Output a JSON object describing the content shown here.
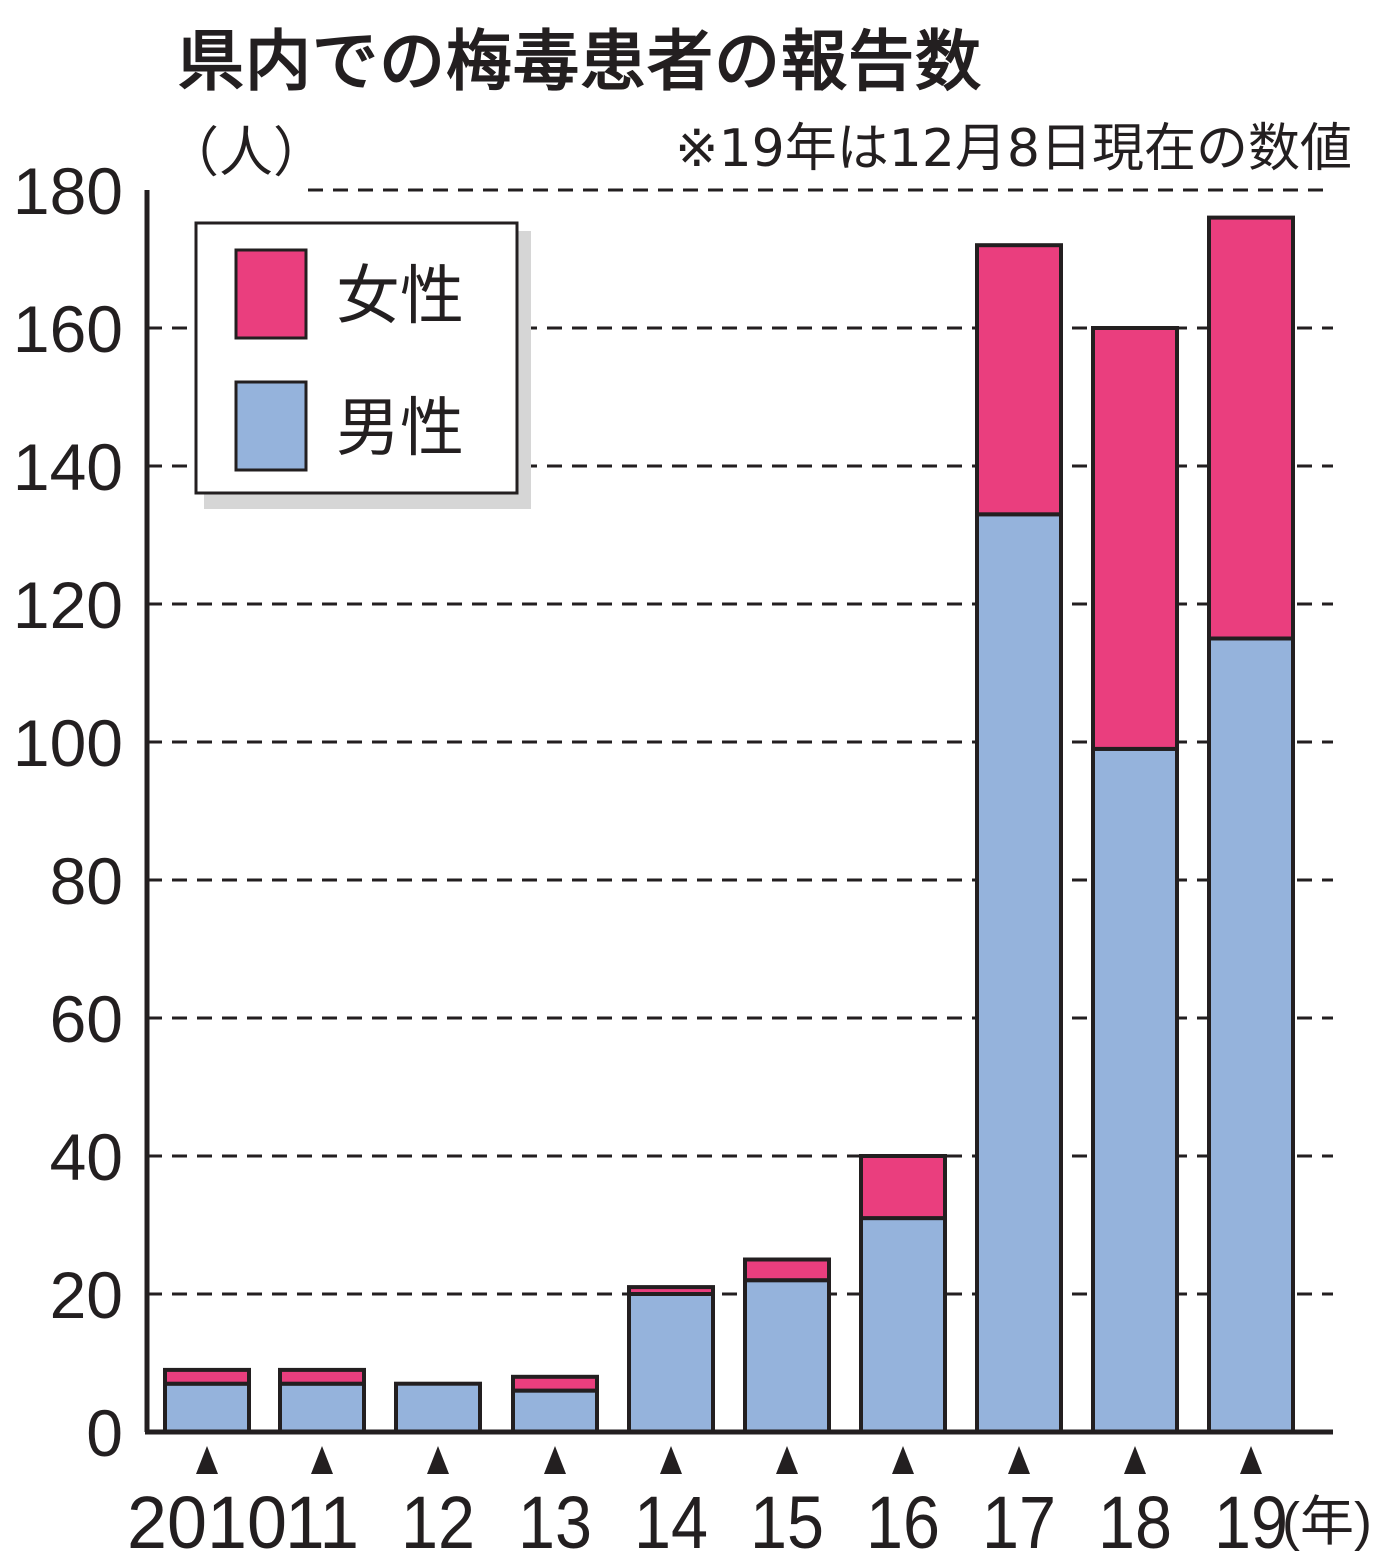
{
  "chart_data": {
    "type": "bar",
    "stacked": true,
    "title": "県内での梅毒患者の報告数",
    "ylabel": "（人）",
    "note": "※19年は12月8日現在の数値",
    "x_unit": "(年)",
    "categories": [
      "2010",
      "11",
      "12",
      "13",
      "14",
      "15",
      "16",
      "17",
      "18",
      "19"
    ],
    "series": [
      {
        "name": "男性",
        "color": "#95b3dc",
        "values": [
          7,
          7,
          7,
          6,
          20,
          22,
          31,
          133,
          99,
          115
        ]
      },
      {
        "name": "女性",
        "color": "#ea3e7e",
        "values": [
          2,
          2,
          0,
          2,
          1,
          3,
          9,
          39,
          61,
          61
        ]
      }
    ],
    "ylim": [
      0,
      180
    ],
    "yticks": [
      "0",
      "20",
      "40",
      "60",
      "80",
      "100",
      "120",
      "140",
      "160",
      "180"
    ],
    "grid": true,
    "legend": {
      "position": "top-left",
      "order": [
        "女性",
        "男性"
      ]
    }
  }
}
